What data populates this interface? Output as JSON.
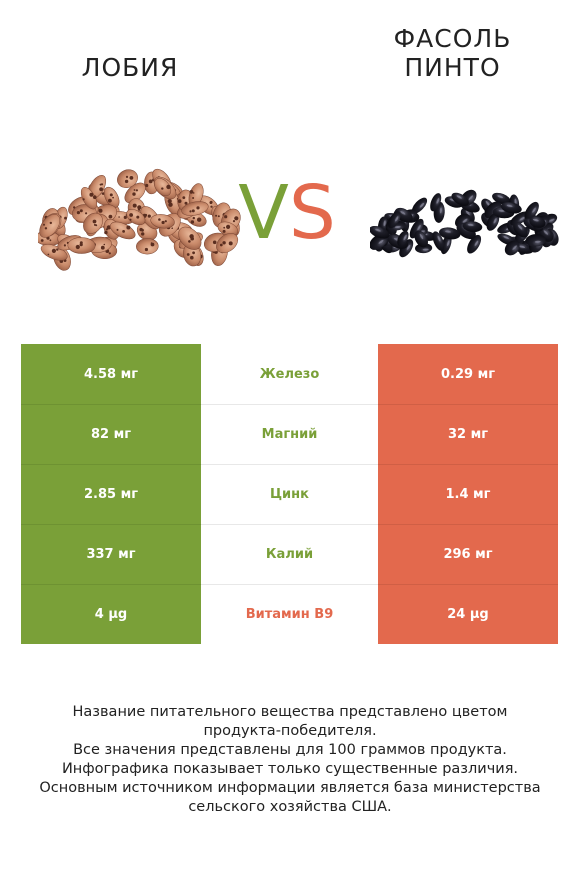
{
  "header": {
    "left_title": "ЛОБИЯ",
    "right_title_line1": "ФАСОЛЬ",
    "right_title_line2": "ПИНТО",
    "vs_v": "V",
    "vs_s": "S"
  },
  "images": {
    "left": "speckled-beans-image",
    "right": "black-beans-image"
  },
  "colors": {
    "green": "#7aa038",
    "red": "#e3694d"
  },
  "rows": [
    {
      "left": "4.58 мг",
      "nutrient": "Железо",
      "right": "0.29 мг",
      "winner": "green"
    },
    {
      "left": "82 мг",
      "nutrient": "Магний",
      "right": "32 мг",
      "winner": "green"
    },
    {
      "left": "2.85 мг",
      "nutrient": "Цинк",
      "right": "1.4 мг",
      "winner": "green"
    },
    {
      "left": "337 мг",
      "nutrient": "Калий",
      "right": "296 мг",
      "winner": "green"
    },
    {
      "left": "4 µg",
      "nutrient": "Витамин B9",
      "right": "24 µg",
      "winner": "red"
    }
  ],
  "footer": [
    "Название питательного вещества представлено цветом",
    "продукта-победителя.",
    "Все значения представлены для 100 граммов продукта.",
    "Инфографика показывает только существенные различия.",
    "Основным источником информации является база министерства",
    "сельского хозяйства США."
  ]
}
